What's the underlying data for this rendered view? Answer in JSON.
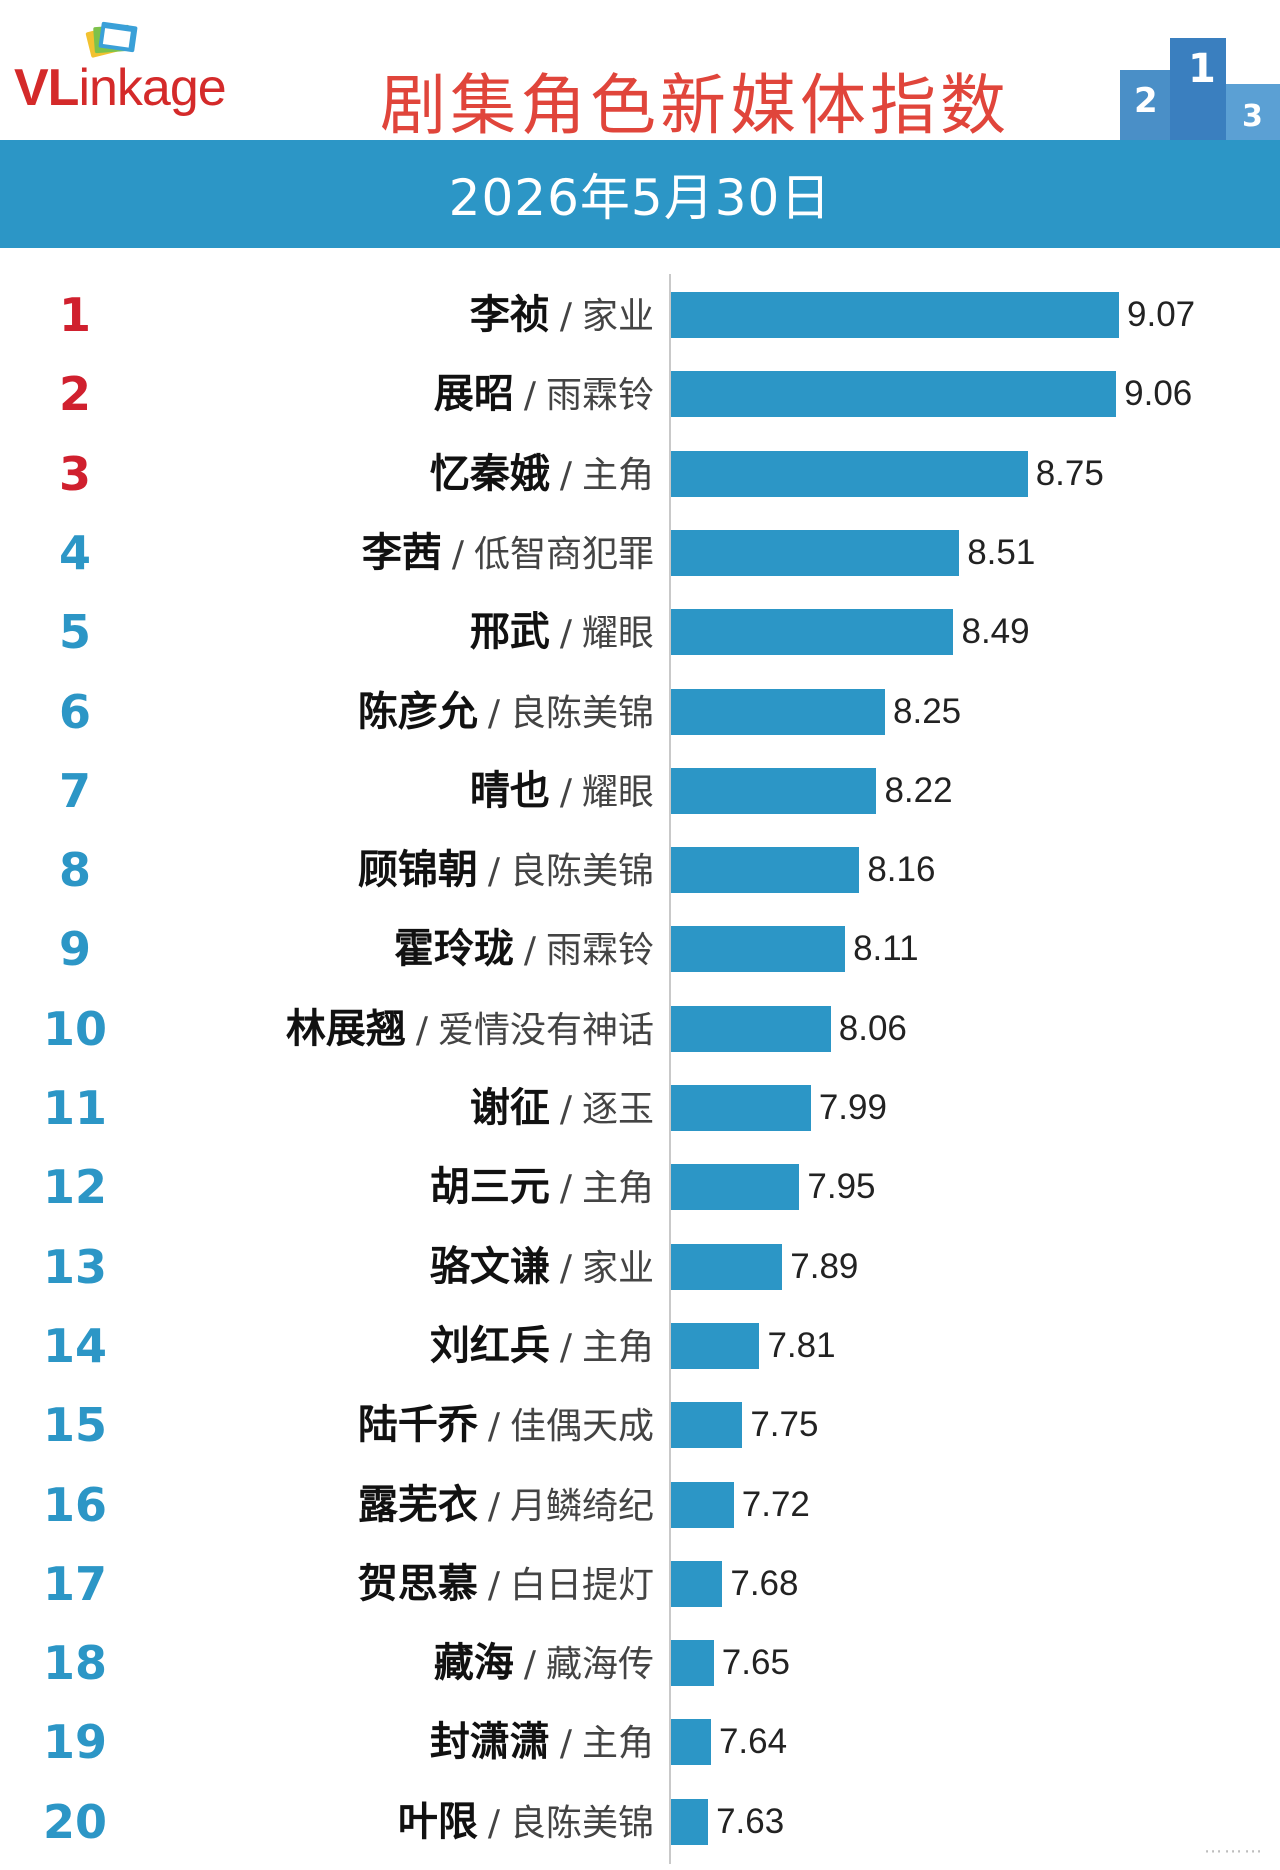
{
  "brand": {
    "logo_vl": "VL",
    "logo_rest": "inkage"
  },
  "title": "剧集角色新媒体指数",
  "date": "2026年5月30日",
  "colors": {
    "bar": "#2c96c6",
    "rank_top": "#d0202e",
    "rank_other": "#2c96c6",
    "title": "#e0453b"
  },
  "chart_data": {
    "type": "bar",
    "orientation": "horizontal",
    "title": "剧集角色新媒体指数",
    "subtitle": "2026年5月30日",
    "xlim": [
      7.5,
      9.2
    ],
    "rows": [
      {
        "rank": "1",
        "name": "李祯",
        "drama": "家业",
        "value": 9.07,
        "value_label": "9.07"
      },
      {
        "rank": "2",
        "name": "展昭",
        "drama": "雨霖铃",
        "value": 9.06,
        "value_label": "9.06"
      },
      {
        "rank": "3",
        "name": "忆秦娥",
        "drama": "主角",
        "value": 8.75,
        "value_label": "8.75"
      },
      {
        "rank": "4",
        "name": "李茜",
        "drama": "低智商犯罪",
        "value": 8.51,
        "value_label": "8.51"
      },
      {
        "rank": "5",
        "name": "邢武",
        "drama": "耀眼",
        "value": 8.49,
        "value_label": "8.49"
      },
      {
        "rank": "6",
        "name": "陈彦允",
        "drama": "良陈美锦",
        "value": 8.25,
        "value_label": "8.25"
      },
      {
        "rank": "7",
        "name": "晴也",
        "drama": "耀眼",
        "value": 8.22,
        "value_label": "8.22"
      },
      {
        "rank": "8",
        "name": "顾锦朝",
        "drama": "良陈美锦",
        "value": 8.16,
        "value_label": "8.16"
      },
      {
        "rank": "9",
        "name": "霍玲珑",
        "drama": "雨霖铃",
        "value": 8.11,
        "value_label": "8.11"
      },
      {
        "rank": "10",
        "name": "林展翘",
        "drama": "爱情没有神话",
        "value": 8.06,
        "value_label": "8.06"
      },
      {
        "rank": "11",
        "name": "谢征",
        "drama": "逐玉",
        "value": 7.99,
        "value_label": "7.99"
      },
      {
        "rank": "12",
        "name": "胡三元",
        "drama": "主角",
        "value": 7.95,
        "value_label": "7.95"
      },
      {
        "rank": "13",
        "name": "骆文谦",
        "drama": "家业",
        "value": 7.89,
        "value_label": "7.89"
      },
      {
        "rank": "14",
        "name": "刘红兵",
        "drama": "主角",
        "value": 7.81,
        "value_label": "7.81"
      },
      {
        "rank": "15",
        "name": "陆千乔",
        "drama": "佳偶天成",
        "value": 7.75,
        "value_label": "7.75"
      },
      {
        "rank": "16",
        "name": "露芜衣",
        "drama": "月鳞绮纪",
        "value": 7.72,
        "value_label": "7.72"
      },
      {
        "rank": "17",
        "name": "贺思慕",
        "drama": "白日提灯",
        "value": 7.68,
        "value_label": "7.68"
      },
      {
        "rank": "18",
        "name": "藏海",
        "drama": "藏海传",
        "value": 7.65,
        "value_label": "7.65"
      },
      {
        "rank": "19",
        "name": "封潇潇",
        "drama": "主角",
        "value": 7.64,
        "value_label": "7.64"
      },
      {
        "rank": "20",
        "name": "叶限",
        "drama": "良陈美锦",
        "value": 7.63,
        "value_label": "7.63"
      }
    ]
  }
}
